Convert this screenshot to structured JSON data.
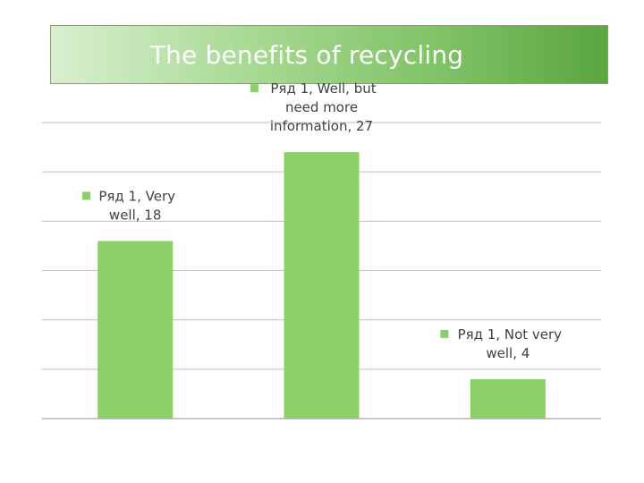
{
  "chart_data": {
    "type": "bar",
    "title": "The benefits of recycling",
    "categories": [
      "Very well",
      "Well, but need more information",
      "Not very well"
    ],
    "series": [
      {
        "name": "Ряд 1",
        "values": [
          18,
          27,
          4
        ]
      }
    ],
    "data_labels": [
      [
        "Ряд 1, Very",
        "well, 18"
      ],
      [
        "Ряд 1, Well, but",
        "need more",
        "information, 27"
      ],
      [
        "Ряд 1, Not very",
        "well, 4"
      ]
    ],
    "ylim": [
      0,
      30
    ],
    "gridlines": true,
    "xlabel": "",
    "ylabel": "",
    "colors": {
      "bar": "#8ccf6a",
      "grid": "#bfbfbf",
      "axis": "#8c8c8c",
      "text": "#404040"
    }
  }
}
